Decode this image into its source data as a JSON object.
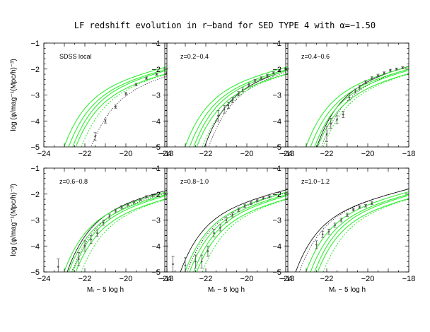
{
  "figure": {
    "title": "LF redshift evolution in r–band for SED TYPE 4 with α=−1.50"
  },
  "colors": {
    "data": "#555555",
    "fit": "#000000",
    "models": "#33ee33",
    "axes": "#000000"
  },
  "chart_data": [
    {
      "type": "scatter",
      "label": "SDSS local",
      "xlim": [
        -24,
        -18
      ],
      "ylim": [
        -5,
        -1
      ],
      "xticks": [
        -24,
        -22,
        -20,
        -18
      ],
      "yticks": [
        -5,
        -4,
        -3,
        -2,
        -1
      ],
      "ylabel": "log (φ/mag⁻¹(Mpc/h)⁻³)",
      "xlabel": "",
      "series": [
        {
          "role": "data",
          "style": "points-with-errorbars",
          "x": [
            -21.5,
            -21.0,
            -20.5,
            -20.0,
            -19.5,
            -19.0,
            -18.5,
            -18.0
          ],
          "y": [
            -4.6,
            -4.0,
            -3.45,
            -2.95,
            -2.6,
            -2.35,
            -2.2,
            -2.15
          ],
          "yerr": [
            0.15,
            0.08,
            0.06,
            0.05,
            0.05,
            0.04,
            0.04,
            0.04
          ]
        },
        {
          "role": "fit",
          "style": "dotted",
          "mstar": -20.0,
          "logphistar": -2.6
        },
        {
          "role": "model",
          "style": "solid",
          "mstar": -21.3,
          "logphistar": -2.55
        },
        {
          "role": "model",
          "style": "solid",
          "mstar": -21.1,
          "logphistar": -2.6
        },
        {
          "role": "model",
          "style": "solid",
          "mstar": -20.9,
          "logphistar": -2.6
        },
        {
          "role": "model",
          "style": "solid",
          "mstar": -20.8,
          "logphistar": -2.7
        },
        {
          "role": "model",
          "style": "dotted",
          "mstar": -20.5,
          "logphistar": -2.65
        }
      ]
    },
    {
      "type": "scatter",
      "label": "z=0.2−0.4",
      "xlim": [
        -24,
        -18
      ],
      "ylim": [
        -5,
        -1
      ],
      "xticks": [
        -24,
        -22,
        -20,
        -18
      ],
      "yticks": [
        -5,
        -4,
        -3,
        -2,
        -1
      ],
      "ylabel": "",
      "xlabel": "",
      "series": [
        {
          "role": "data",
          "style": "points-with-errorbars",
          "x": [
            -21.4,
            -21.1,
            -20.9,
            -20.7,
            -20.4,
            -20.2,
            -19.9,
            -19.6,
            -19.3,
            -19.0,
            -18.7,
            -18.4,
            -18.1
          ],
          "y": [
            -3.8,
            -3.55,
            -3.4,
            -3.2,
            -2.95,
            -2.8,
            -2.6,
            -2.45,
            -2.35,
            -2.25,
            -2.15,
            -2.05,
            -2.0
          ],
          "yerr": [
            0.2,
            0.15,
            0.12,
            0.1,
            0.08,
            0.07,
            0.06,
            0.05,
            0.05,
            0.05,
            0.04,
            0.04,
            0.04
          ]
        },
        {
          "role": "fit",
          "style": "solid",
          "mstar": -20.3,
          "logphistar": -2.45
        },
        {
          "role": "fit",
          "style": "dotted",
          "mstar": -20.1,
          "logphistar": -2.45
        },
        {
          "role": "model",
          "style": "solid",
          "mstar": -21.3,
          "logphistar": -2.55
        },
        {
          "role": "model",
          "style": "solid",
          "mstar": -21.1,
          "logphistar": -2.6
        },
        {
          "role": "model",
          "style": "solid",
          "mstar": -20.9,
          "logphistar": -2.6
        },
        {
          "role": "model",
          "style": "solid",
          "mstar": -20.8,
          "logphistar": -2.7
        },
        {
          "role": "model",
          "style": "dotted",
          "mstar": -20.5,
          "logphistar": -2.65
        }
      ]
    },
    {
      "type": "scatter",
      "label": "z=0.4−0.6",
      "xlim": [
        -24,
        -18
      ],
      "ylim": [
        -5,
        -1
      ],
      "xticks": [
        -24,
        -22,
        -20,
        -18
      ],
      "yticks": [
        -5,
        -4,
        -3,
        -2,
        -1
      ],
      "ylabel": "",
      "xlabel": "",
      "series": [
        {
          "role": "data",
          "style": "points-with-errorbars",
          "x": [
            -22.0,
            -21.8,
            -21.5,
            -21.2,
            -20.9,
            -20.6,
            -20.4,
            -20.1,
            -19.8,
            -19.5,
            -19.2,
            -18.9,
            -18.6,
            -18.3
          ],
          "y": [
            -4.5,
            -4.1,
            -3.95,
            -3.75,
            -3.1,
            -2.85,
            -2.7,
            -2.5,
            -2.35,
            -2.25,
            -2.15,
            -2.05,
            -2.0,
            -1.95
          ],
          "yerr": [
            0.3,
            0.2,
            0.15,
            0.12,
            0.1,
            0.08,
            0.07,
            0.06,
            0.05,
            0.05,
            0.04,
            0.04,
            0.04,
            0.04
          ]
        },
        {
          "role": "fit",
          "style": "solid",
          "mstar": -20.7,
          "logphistar": -2.4
        },
        {
          "role": "fit",
          "style": "dotted",
          "mstar": -20.5,
          "logphistar": -2.45
        },
        {
          "role": "model",
          "style": "solid",
          "mstar": -21.3,
          "logphistar": -2.55
        },
        {
          "role": "model",
          "style": "solid",
          "mstar": -21.1,
          "logphistar": -2.6
        },
        {
          "role": "model",
          "style": "solid",
          "mstar": -20.9,
          "logphistar": -2.6
        },
        {
          "role": "model",
          "style": "solid",
          "mstar": -20.8,
          "logphistar": -2.7
        },
        {
          "role": "model",
          "style": "dotted",
          "mstar": -20.5,
          "logphistar": -2.65
        }
      ]
    },
    {
      "type": "scatter",
      "label": "z=0.6−0.8",
      "xlim": [
        -24,
        -18
      ],
      "ylim": [
        -5,
        -1
      ],
      "xticks": [
        -24,
        -22,
        -20,
        -18
      ],
      "yticks": [
        -5,
        -4,
        -3,
        -2,
        -1
      ],
      "ylabel": "log (φ/mag⁻¹(Mpc/h)⁻³)",
      "xlabel": "Mᵣ − 5 log h",
      "series": [
        {
          "role": "data",
          "style": "points-with-errorbars",
          "x": [
            -23.3,
            -22.3,
            -22.0,
            -21.7,
            -21.4,
            -21.1,
            -20.8,
            -20.5,
            -20.2,
            -19.9,
            -19.6,
            -19.3,
            -19.0,
            -18.7
          ],
          "y": [
            -4.8,
            -4.5,
            -4.0,
            -3.75,
            -3.5,
            -3.1,
            -2.85,
            -2.65,
            -2.5,
            -2.4,
            -2.3,
            -2.2,
            -2.1,
            -2.05
          ],
          "yerr": [
            0.3,
            0.25,
            0.2,
            0.15,
            0.12,
            0.1,
            0.08,
            0.07,
            0.06,
            0.05,
            0.05,
            0.04,
            0.04,
            0.04
          ]
        },
        {
          "role": "fit",
          "style": "solid",
          "mstar": -21.1,
          "logphistar": -2.45
        },
        {
          "role": "fit",
          "style": "dotted",
          "mstar": -20.9,
          "logphistar": -2.5
        },
        {
          "role": "model",
          "style": "solid",
          "mstar": -21.3,
          "logphistar": -2.55
        },
        {
          "role": "model",
          "style": "solid",
          "mstar": -21.1,
          "logphistar": -2.6
        },
        {
          "role": "model",
          "style": "solid",
          "mstar": -20.9,
          "logphistar": -2.6
        },
        {
          "role": "model",
          "style": "solid",
          "mstar": -20.8,
          "logphistar": -2.7
        },
        {
          "role": "model",
          "style": "dotted",
          "mstar": -20.5,
          "logphistar": -2.65
        }
      ]
    },
    {
      "type": "scatter",
      "label": "z=0.8−1.0",
      "xlim": [
        -24,
        -18
      ],
      "ylim": [
        -5,
        -1
      ],
      "xticks": [
        -24,
        -22,
        -20,
        -18
      ],
      "yticks": [
        -5,
        -4,
        -3,
        -2,
        -1
      ],
      "ylabel": "",
      "xlabel": "Mᵣ − 5 log h",
      "series": [
        {
          "role": "data",
          "style": "points-with-errorbars",
          "x": [
            -23.6,
            -23.0,
            -22.5,
            -22.2,
            -21.9,
            -21.6,
            -21.3,
            -21.0,
            -20.7,
            -20.4,
            -20.1,
            -19.8,
            -19.5,
            -19.2,
            -18.9
          ],
          "y": [
            -4.7,
            -4.75,
            -4.6,
            -4.6,
            -4.2,
            -3.5,
            -3.3,
            -3.0,
            -2.8,
            -2.6,
            -2.45,
            -2.35,
            -2.25,
            -2.15,
            -2.1
          ],
          "yerr": [
            0.3,
            0.3,
            0.25,
            0.25,
            0.2,
            0.15,
            0.12,
            0.1,
            0.08,
            0.07,
            0.06,
            0.05,
            0.05,
            0.04,
            0.04
          ]
        },
        {
          "role": "fit",
          "style": "solid",
          "mstar": -21.5,
          "logphistar": -2.5
        },
        {
          "role": "fit",
          "style": "dotted",
          "mstar": -21.2,
          "logphistar": -2.55
        },
        {
          "role": "model",
          "style": "solid",
          "mstar": -21.3,
          "logphistar": -2.55
        },
        {
          "role": "model",
          "style": "solid",
          "mstar": -21.1,
          "logphistar": -2.6
        },
        {
          "role": "model",
          "style": "solid",
          "mstar": -20.9,
          "logphistar": -2.6
        },
        {
          "role": "model",
          "style": "solid",
          "mstar": -20.8,
          "logphistar": -2.7
        },
        {
          "role": "model",
          "style": "dotted",
          "mstar": -20.5,
          "logphistar": -2.65
        }
      ]
    },
    {
      "type": "scatter",
      "label": "z=1.0−1.2",
      "xlim": [
        -24,
        -18
      ],
      "ylim": [
        -5,
        -1
      ],
      "xticks": [
        -24,
        -22,
        -20,
        -18
      ],
      "yticks": [
        -5,
        -4,
        -3,
        -2,
        -1
      ],
      "ylabel": "",
      "xlabel": "Mᵣ − 5 log h",
      "series": [
        {
          "role": "data",
          "style": "points-with-errorbars",
          "x": [
            -22.5,
            -22.2,
            -21.9,
            -21.6,
            -21.3,
            -21.0,
            -20.7,
            -20.4,
            -20.1,
            -19.8
          ],
          "y": [
            -3.95,
            -3.55,
            -3.45,
            -3.2,
            -3.0,
            -2.8,
            -2.6,
            -2.5,
            -2.45,
            -2.35
          ],
          "yerr": [
            0.15,
            0.12,
            0.1,
            0.08,
            0.07,
            0.06,
            0.05,
            0.05,
            0.05,
            0.05
          ]
        },
        {
          "role": "fit",
          "style": "solid",
          "mstar": -21.8,
          "logphistar": -2.55
        },
        {
          "role": "fit",
          "style": "dotted",
          "mstar": -21.6,
          "logphistar": -2.5
        },
        {
          "role": "model",
          "style": "solid",
          "mstar": -21.3,
          "logphistar": -2.55
        },
        {
          "role": "model",
          "style": "solid",
          "mstar": -21.1,
          "logphistar": -2.6
        },
        {
          "role": "model",
          "style": "solid",
          "mstar": -20.9,
          "logphistar": -2.6
        },
        {
          "role": "model",
          "style": "solid",
          "mstar": -20.8,
          "logphistar": -2.7
        },
        {
          "role": "model",
          "style": "dotted",
          "mstar": -20.5,
          "logphistar": -2.65
        }
      ]
    }
  ]
}
